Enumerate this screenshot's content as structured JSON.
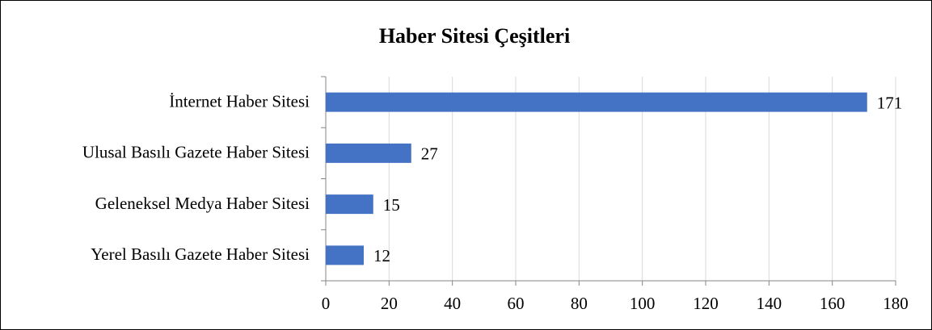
{
  "chart_data": {
    "type": "bar",
    "orientation": "horizontal",
    "title": "Haber Sitesi Çeşitleri",
    "categories": [
      "İnternet Haber Sitesi",
      "Ulusal Basılı Gazete Haber Sitesi",
      "Geleneksel Medya Haber Sitesi",
      "Yerel Basılı Gazete Haber Sitesi"
    ],
    "values": [
      171,
      27,
      15,
      12
    ],
    "color": "#4472c4",
    "xlim": [
      0,
      180
    ],
    "xticks": [
      0,
      20,
      40,
      60,
      80,
      100,
      120,
      140,
      160,
      180
    ],
    "grid": true
  }
}
